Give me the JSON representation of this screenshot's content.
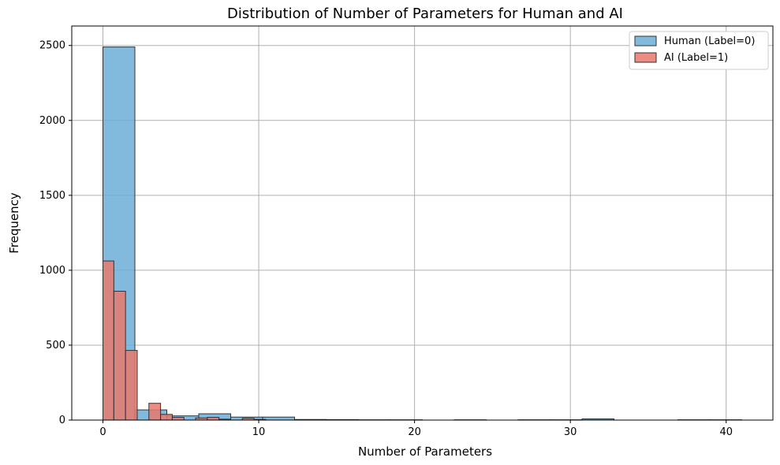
{
  "chart_data": {
    "type": "histogram",
    "title": "Distribution of Number of Parameters for Human and AI",
    "xlabel": "Number of Parameters",
    "ylabel": "Frequency",
    "xlim": [
      -2,
      43
    ],
    "ylim": [
      0,
      2630
    ],
    "xticks": [
      0,
      10,
      20,
      30,
      40
    ],
    "yticks": [
      0,
      500,
      1000,
      1500,
      2000,
      2500
    ],
    "grid": true,
    "legend_position": "top-right",
    "series": [
      {
        "name": "Human (Label=0)",
        "color": "#6baed6",
        "bins": [
          {
            "x0": 0.0,
            "x1": 2.05,
            "value": 2490
          },
          {
            "x0": 2.05,
            "x1": 4.1,
            "value": 68
          },
          {
            "x0": 4.1,
            "x1": 6.15,
            "value": 28
          },
          {
            "x0": 6.15,
            "x1": 8.2,
            "value": 42
          },
          {
            "x0": 8.2,
            "x1": 10.25,
            "value": 20
          },
          {
            "x0": 10.25,
            "x1": 12.3,
            "value": 20
          },
          {
            "x0": 12.3,
            "x1": 14.35,
            "value": 4
          },
          {
            "x0": 14.35,
            "x1": 16.4,
            "value": 3
          },
          {
            "x0": 16.4,
            "x1": 18.45,
            "value": 2
          },
          {
            "x0": 18.45,
            "x1": 20.5,
            "value": 2
          },
          {
            "x0": 20.5,
            "x1": 22.55,
            "value": 0
          },
          {
            "x0": 22.55,
            "x1": 24.6,
            "value": 2
          },
          {
            "x0": 24.6,
            "x1": 26.65,
            "value": 0
          },
          {
            "x0": 26.65,
            "x1": 28.7,
            "value": 2
          },
          {
            "x0": 28.7,
            "x1": 30.75,
            "value": 2
          },
          {
            "x0": 30.75,
            "x1": 32.8,
            "value": 8
          },
          {
            "x0": 32.8,
            "x1": 34.85,
            "value": 0
          },
          {
            "x0": 34.85,
            "x1": 36.9,
            "value": 0
          },
          {
            "x0": 36.9,
            "x1": 38.95,
            "value": 2
          },
          {
            "x0": 38.95,
            "x1": 41.0,
            "value": 2
          }
        ]
      },
      {
        "name": "AI (Label=1)",
        "color": "#e8796d",
        "bins": [
          {
            "x0": 0.0,
            "x1": 0.7,
            "value": 1062
          },
          {
            "x0": 0.7,
            "x1": 1.45,
            "value": 860
          },
          {
            "x0": 1.45,
            "x1": 2.2,
            "value": 465
          },
          {
            "x0": 2.2,
            "x1": 2.95,
            "value": 0
          },
          {
            "x0": 2.95,
            "x1": 3.7,
            "value": 112
          },
          {
            "x0": 3.7,
            "x1": 4.45,
            "value": 38
          },
          {
            "x0": 4.45,
            "x1": 5.2,
            "value": 18
          },
          {
            "x0": 5.2,
            "x1": 5.95,
            "value": 0
          },
          {
            "x0": 5.95,
            "x1": 6.7,
            "value": 14
          },
          {
            "x0": 6.7,
            "x1": 7.45,
            "value": 18
          },
          {
            "x0": 7.45,
            "x1": 8.2,
            "value": 6
          },
          {
            "x0": 8.2,
            "x1": 8.95,
            "value": 0
          },
          {
            "x0": 8.95,
            "x1": 9.7,
            "value": 12
          },
          {
            "x0": 9.7,
            "x1": 10.45,
            "value": 4
          }
        ]
      }
    ]
  }
}
